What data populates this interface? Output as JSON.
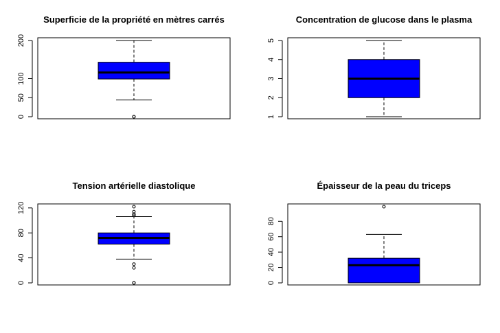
{
  "chart_data": [
    {
      "type": "boxplot",
      "title": "Superficie de la propriété en mètres carrés",
      "ylim": [
        0,
        200
      ],
      "yticks": [
        0,
        50,
        100,
        200
      ],
      "box": {
        "whisker_low": 44,
        "q1": 99,
        "median": 116,
        "q3": 143,
        "whisker_high": 200
      },
      "outliers": [
        0,
        0
      ],
      "fill_color": "#0000ff"
    },
    {
      "type": "boxplot",
      "title": "Concentration de glucose dans le plasma",
      "ylim": [
        1,
        5
      ],
      "yticks": [
        1,
        2,
        3,
        4,
        5
      ],
      "box": {
        "whisker_low": 1,
        "q1": 2,
        "median": 3,
        "q3": 4,
        "whisker_high": 5
      },
      "outliers": [],
      "fill_color": "#0000ff"
    },
    {
      "type": "boxplot",
      "title": "Tension artérielle diastolique",
      "ylim": [
        0,
        122
      ],
      "yticks": [
        0,
        40,
        80,
        120
      ],
      "box": {
        "whisker_low": 38,
        "q1": 62,
        "median": 72,
        "q3": 80,
        "whisker_high": 106
      },
      "outliers": [
        0,
        0,
        24,
        30,
        108,
        110,
        114,
        122
      ],
      "fill_color": "#0000ff"
    },
    {
      "type": "boxplot",
      "title": "Épaisseur de la peau du triceps",
      "ylim": [
        0,
        99
      ],
      "yticks": [
        0,
        20,
        40,
        60,
        80
      ],
      "box": {
        "whisker_low": 0,
        "q1": 0,
        "median": 23,
        "q3": 32,
        "whisker_high": 63
      },
      "outliers": [
        99
      ],
      "fill_color": "#0000ff"
    }
  ]
}
